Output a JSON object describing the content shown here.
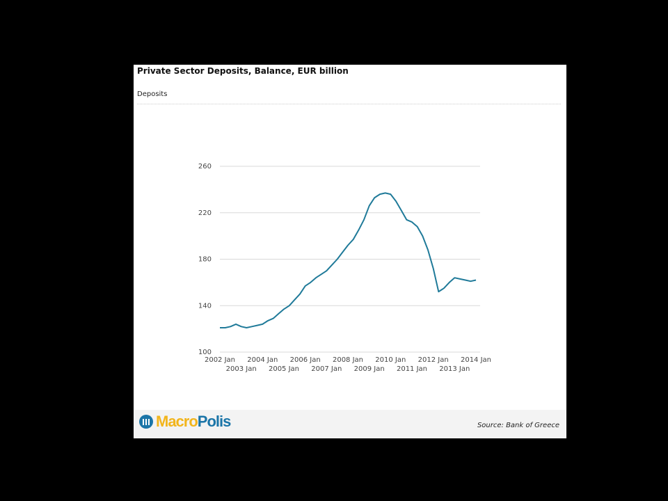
{
  "chart_data": {
    "type": "line",
    "title": "Private Sector Deposits, Balance, EUR billion",
    "source": "Source: Bank of Greece",
    "logo": [
      "Macro",
      "Polis"
    ],
    "categories": [
      "2002 Jan",
      null,
      null,
      null,
      "2003 Jan",
      null,
      null,
      null,
      "2004 Jan",
      null,
      null,
      null,
      "2005 Jan",
      null,
      null,
      null,
      "2006 Jan",
      null,
      null,
      null,
      "2007 Jan",
      null,
      null,
      null,
      "2008 Jan",
      null,
      null,
      null,
      "2009 Jan",
      null,
      null,
      null,
      "2010 Jan",
      null,
      null,
      null,
      "2011 Jan",
      null,
      null,
      null,
      "2012 Jan",
      null,
      null,
      null,
      "2013 Jan",
      null,
      null,
      null,
      "2014 Jan"
    ],
    "series": [
      {
        "name": "Deposits",
        "color": "#1f7a99",
        "values": [
          121,
          121,
          122,
          124,
          122,
          121,
          122,
          123,
          124,
          127,
          129,
          133,
          137,
          140,
          145,
          150,
          157,
          160,
          164,
          167,
          170,
          175,
          180,
          186,
          192,
          197,
          205,
          214,
          226,
          233,
          236,
          237,
          236,
          230,
          222,
          214,
          212,
          208,
          200,
          188,
          172,
          152,
          155,
          160,
          164,
          163,
          162,
          161,
          162
        ]
      }
    ],
    "ylim": [
      100,
      260
    ],
    "yticks": [
      100,
      140,
      180,
      220,
      260
    ],
    "grid": true
  }
}
